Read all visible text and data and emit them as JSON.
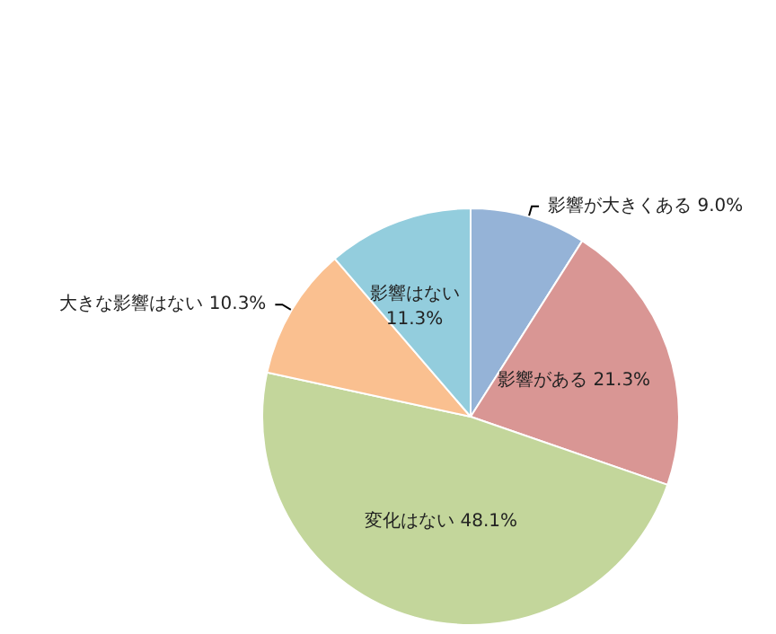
{
  "chart_data": {
    "type": "pie",
    "categories": [
      "影響が大きくある",
      "影響がある",
      "変化はない",
      "大きな影響はない",
      "影響はない"
    ],
    "values": [
      9.0,
      21.3,
      48.1,
      10.3,
      11.3
    ],
    "value_labels": [
      "9.0%",
      "21.3%",
      "48.1%",
      "10.3%",
      "11.3%"
    ],
    "colors": [
      "#95b3d7",
      "#d99694",
      "#c3d69b",
      "#fac090",
      "#93cddd"
    ],
    "legend": false
  }
}
